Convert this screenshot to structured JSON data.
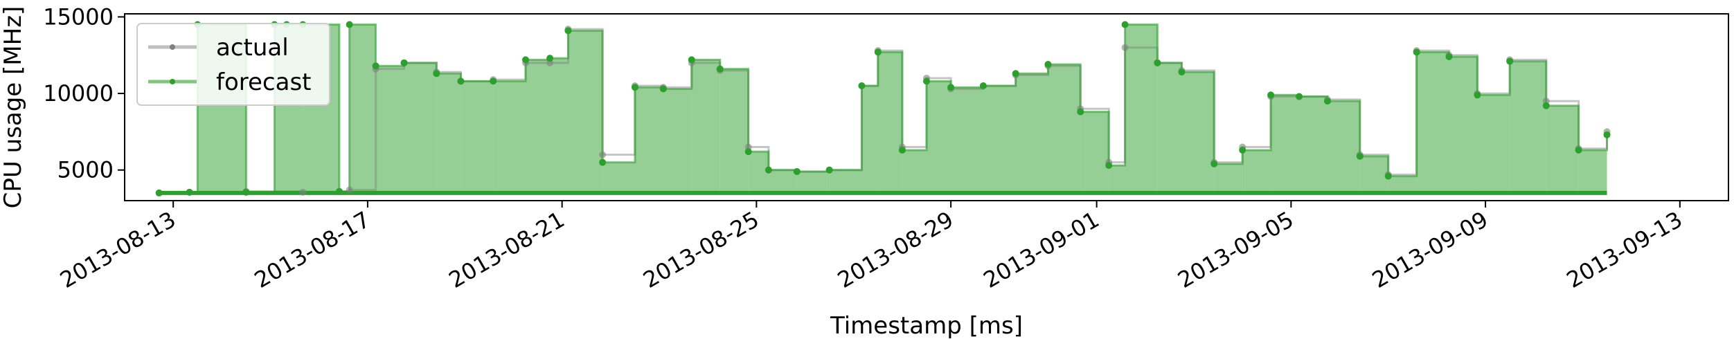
{
  "chart_data": {
    "type": "line",
    "xlabel": "Timestamp [ms]",
    "ylabel": "CPU usage [MHz]",
    "xlim": [
      "2013-08-12T00:00",
      "2013-09-14T00:00"
    ],
    "ylim": [
      3000,
      15200
    ],
    "x_ticks": [
      "2013-08-13",
      "2013-08-17",
      "2013-08-21",
      "2013-08-25",
      "2013-08-29",
      "2013-09-01",
      "2013-09-05",
      "2013-09-09",
      "2013-09-13"
    ],
    "y_ticks": [
      5000,
      10000,
      15000
    ],
    "y_tick_labels": [
      "5000",
      "10000",
      "15000"
    ],
    "grid": false,
    "legend": "top-left",
    "colors": {
      "actual": "#7f7f7f",
      "forecast": "#2ca02c"
    },
    "series": [
      {
        "name": "actual",
        "x": [
          "2013-08-12T17:00",
          "2013-08-13T08:00",
          "2013-08-14T12:00",
          "2013-08-15T16:00",
          "2013-08-16T10:00",
          "2013-08-16T15:00",
          "2013-08-17T04:00",
          "2013-08-17T18:00",
          "2013-08-18T10:00",
          "2013-08-18T22:00",
          "2013-08-19T14:00",
          "2013-08-20T06:00",
          "2013-08-20T18:00",
          "2013-08-21T03:00",
          "2013-08-21T20:00",
          "2013-08-22T12:00",
          "2013-08-23T02:00",
          "2013-08-23T16:00",
          "2013-08-24T06:00",
          "2013-08-24T20:00",
          "2013-08-25T06:00",
          "2013-08-25T20:00",
          "2013-08-26T12:00",
          "2013-08-27T04:00",
          "2013-08-27T12:00",
          "2013-08-28T00:00",
          "2013-08-28T12:00",
          "2013-08-29T00:00",
          "2013-08-29T16:00",
          "2013-08-30T08:00",
          "2013-08-31T00:00",
          "2013-08-31T16:00",
          "2013-09-01T06:00",
          "2013-09-01T14:00",
          "2013-09-02T06:00",
          "2013-09-02T18:00",
          "2013-09-03T10:00",
          "2013-09-04T00:00",
          "2013-09-04T14:00",
          "2013-09-05T04:00",
          "2013-09-05T18:00",
          "2013-09-06T10:00",
          "2013-09-07T00:00",
          "2013-09-07T14:00",
          "2013-09-08T06:00",
          "2013-09-08T20:00",
          "2013-09-09T12:00",
          "2013-09-10T06:00",
          "2013-09-10T22:00",
          "2013-09-11T12:00"
        ],
        "values": [
          3500,
          3550,
          3600,
          3550,
          3600,
          3700,
          11600,
          12000,
          11400,
          10800,
          10900,
          12000,
          12000,
          14200,
          6000,
          10500,
          10400,
          12000,
          11500,
          6500,
          5000,
          4900,
          5000,
          10500,
          12800,
          6500,
          11000,
          10300,
          10500,
          11200,
          11800,
          9000,
          5500,
          13000,
          12000,
          11500,
          5500,
          6500,
          9800,
          9800,
          9600,
          6000,
          4700,
          12800,
          12500,
          10000,
          12200,
          9500,
          6400,
          7500
        ]
      },
      {
        "name": "forecast",
        "x": [
          "2013-08-12T17:00",
          "2013-08-13T08:00",
          "2013-08-13T12:00",
          "2013-08-14T12:00",
          "2013-08-15T02:00",
          "2013-08-15T08:00",
          "2013-08-15T16:00",
          "2013-08-16T10:00",
          "2013-08-16T15:00",
          "2013-08-17T04:00",
          "2013-08-17T18:00",
          "2013-08-18T10:00",
          "2013-08-18T22:00",
          "2013-08-19T14:00",
          "2013-08-20T06:00",
          "2013-08-20T18:00",
          "2013-08-21T03:00",
          "2013-08-21T20:00",
          "2013-08-22T12:00",
          "2013-08-23T02:00",
          "2013-08-23T16:00",
          "2013-08-24T06:00",
          "2013-08-24T20:00",
          "2013-08-25T06:00",
          "2013-08-25T20:00",
          "2013-08-26T12:00",
          "2013-08-27T04:00",
          "2013-08-27T12:00",
          "2013-08-28T00:00",
          "2013-08-28T12:00",
          "2013-08-29T00:00",
          "2013-08-29T16:00",
          "2013-08-30T08:00",
          "2013-08-31T00:00",
          "2013-08-31T16:00",
          "2013-09-01T06:00",
          "2013-09-01T14:00",
          "2013-09-02T06:00",
          "2013-09-02T18:00",
          "2013-09-03T10:00",
          "2013-09-04T00:00",
          "2013-09-04T14:00",
          "2013-09-05T04:00",
          "2013-09-05T18:00",
          "2013-09-06T10:00",
          "2013-09-07T00:00",
          "2013-09-07T14:00",
          "2013-09-08T06:00",
          "2013-09-08T20:00",
          "2013-09-09T12:00",
          "2013-09-10T06:00",
          "2013-09-10T22:00",
          "2013-09-11T12:00"
        ],
        "values": [
          3500,
          3550,
          14500,
          3550,
          14500,
          14500,
          14500,
          3600,
          14500,
          11800,
          12000,
          11300,
          10800,
          10800,
          12200,
          12300,
          14100,
          5500,
          10400,
          10300,
          12200,
          11600,
          6200,
          5000,
          4900,
          5000,
          10500,
          12700,
          6300,
          10800,
          10400,
          10500,
          11300,
          11900,
          8800,
          5300,
          14500,
          12000,
          11400,
          5400,
          6300,
          9900,
          9800,
          9500,
          5900,
          4600,
          12700,
          12400,
          9900,
          12100,
          9200,
          6300,
          7300
        ]
      }
    ]
  }
}
